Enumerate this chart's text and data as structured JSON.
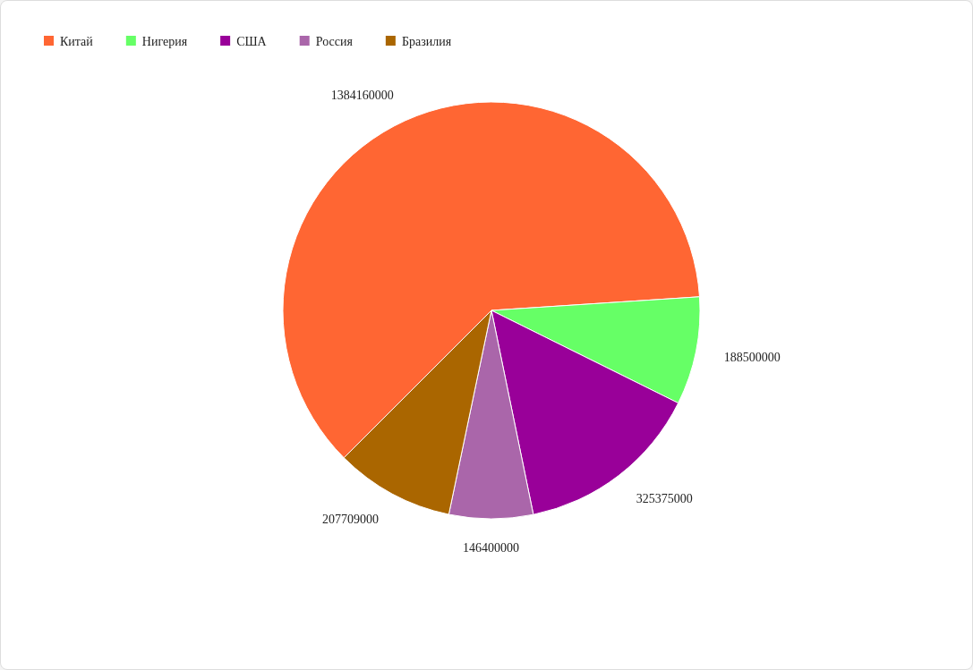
{
  "chart_data": {
    "type": "pie",
    "categories": [
      "Китай",
      "Нигерия",
      "США",
      "Россия",
      "Бразилия"
    ],
    "values": [
      1384160000,
      188500000,
      325375000,
      146400000,
      207709000
    ],
    "colors": [
      "#ff6633",
      "#66ff66",
      "#990099",
      "#aa66aa",
      "#aa6600"
    ],
    "data_labels": true,
    "legend": "top left"
  }
}
